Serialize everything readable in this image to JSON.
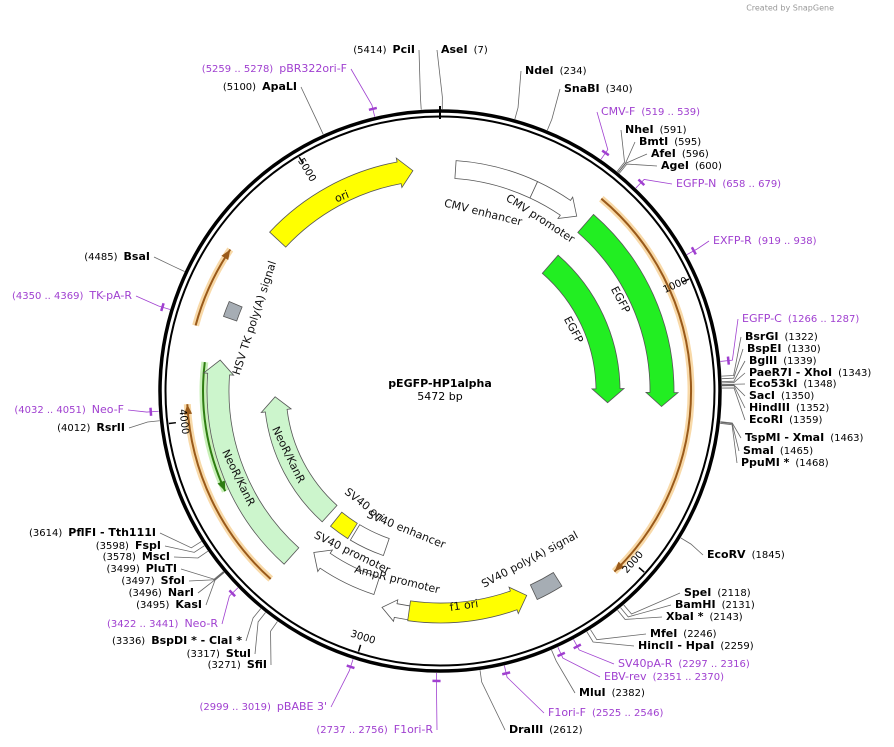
{
  "credit": "Created by SnapGene",
  "map": {
    "name": "pEGFP-HP1alpha",
    "size": "5472 bp"
  },
  "sites": [
    {
      "name": "PciI",
      "position": "(5414)"
    },
    {
      "name": "AseI",
      "position": "(7)"
    },
    {
      "name": "NdeI",
      "position": "(234)"
    },
    {
      "name": "SnaBI",
      "position": "(340)"
    },
    {
      "name": "NheI",
      "position": "(591)"
    },
    {
      "name": "BmtI",
      "position": "(595)"
    },
    {
      "name": "AfeI",
      "position": "(596)"
    },
    {
      "name": "AgeI",
      "position": "(600)"
    },
    {
      "name": "BsrGI",
      "position": "(1322)"
    },
    {
      "name": "BspEI",
      "position": "(1330)"
    },
    {
      "name": "BglII",
      "position": "(1339)"
    },
    {
      "name": "PaeR7I - XhoI",
      "position": "(1343)"
    },
    {
      "name": "Eco53kI",
      "position": "(1348)"
    },
    {
      "name": "SacI",
      "position": "(1350)"
    },
    {
      "name": "HindIII",
      "position": "(1352)"
    },
    {
      "name": "EcoRI",
      "position": "(1359)"
    },
    {
      "name": "TspMI - XmaI",
      "position": "(1463)"
    },
    {
      "name": "SmaI",
      "position": "(1465)"
    },
    {
      "name": "PpuMI *",
      "position": "(1468)"
    },
    {
      "name": "EcoRV",
      "position": "(1845)"
    },
    {
      "name": "SpeI",
      "position": "(2118)"
    },
    {
      "name": "BamHI",
      "position": "(2131)"
    },
    {
      "name": "XbaI *",
      "position": "(2143)"
    },
    {
      "name": "MfeI",
      "position": "(2246)"
    },
    {
      "name": "HincII - HpaI",
      "position": "(2259)"
    },
    {
      "name": "MluI",
      "position": "(2382)"
    },
    {
      "name": "DraIII",
      "position": "(2612)"
    },
    {
      "name": "SfiI",
      "position": "(3271)"
    },
    {
      "name": "StuI",
      "position": "(3317)"
    },
    {
      "name": "BspDI * - ClaI *",
      "position": "(3336)"
    },
    {
      "name": "KasI",
      "position": "(3495)"
    },
    {
      "name": "NarI",
      "position": "(3496)"
    },
    {
      "name": "SfoI",
      "position": "(3497)"
    },
    {
      "name": "PluTI",
      "position": "(3499)"
    },
    {
      "name": "MscI",
      "position": "(3578)"
    },
    {
      "name": "FspI",
      "position": "(3598)"
    },
    {
      "name": "PflFI - Tth111I",
      "position": "(3614)"
    },
    {
      "name": "RsrII",
      "position": "(4012)"
    },
    {
      "name": "BsaI",
      "position": "(4485)"
    },
    {
      "name": "ApaLI",
      "position": "(5100)"
    }
  ],
  "primers": [
    {
      "name": "pBR322ori-F",
      "range": "(5259 .. 5278)"
    },
    {
      "name": "CMV-F",
      "range": "(519 .. 539)"
    },
    {
      "name": "EGFP-N",
      "range": "(658 .. 679)"
    },
    {
      "name": "EXFP-R",
      "range": "(919 .. 938)"
    },
    {
      "name": "EGFP-C",
      "range": "(1266 .. 1287)"
    },
    {
      "name": "SV40pA-R",
      "range": "(2297 .. 2316)"
    },
    {
      "name": "EBV-rev",
      "range": "(2351 .. 2370)"
    },
    {
      "name": "F1ori-F",
      "range": "(2525 .. 2546)"
    },
    {
      "name": "F1ori-R",
      "range": "(2737 .. 2756)"
    },
    {
      "name": "pBABE 3'",
      "range": "(2999 .. 3019)"
    },
    {
      "name": "Neo-R",
      "range": "(3422 .. 3441)"
    },
    {
      "name": "Neo-F",
      "range": "(4032 .. 4051)"
    },
    {
      "name": "TK-pA-R",
      "range": "(4350 .. 4369)"
    }
  ],
  "features": [
    "ori",
    "CMV enhancer",
    "CMV promoter",
    "EGFP",
    "EGFP",
    "HSV TK poly(A) signal",
    "NeoR/KanR",
    "NeoR/KanR",
    "SV40 ori",
    "SV40 enhancer",
    "SV40 promoter",
    "AmpR promoter",
    "f1 ori",
    "SV40 poly(A) signal"
  ],
  "ruler": [
    1000,
    2000,
    3000,
    4000,
    5000
  ]
}
